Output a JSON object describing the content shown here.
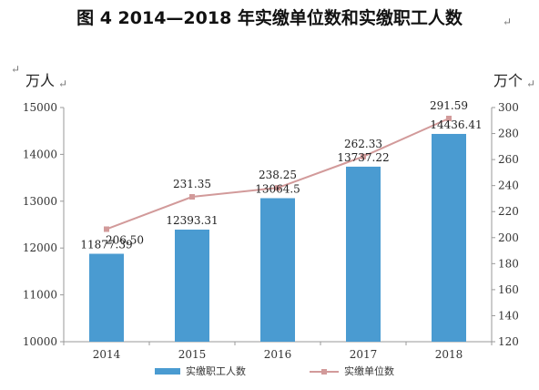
{
  "title": "图 4   2014—2018 年实缴单位数和实缴职工人数",
  "title_mark": "↵",
  "left_unit": "万人",
  "left_unit_mark": "↵",
  "right_unit": "万个",
  "right_unit_mark": "↵",
  "corner_mark": "↵",
  "colors": {
    "bar": "#4a9bd1",
    "line": "#d29a9a",
    "marker": "#d29a9a"
  },
  "chart_data": {
    "type": "bar+line",
    "categories": [
      "2014",
      "2015",
      "2016",
      "2017",
      "2018"
    ],
    "series": [
      {
        "name": "实缴职工人数",
        "type": "bar",
        "axis": "left",
        "values": [
          11877.39,
          12393.31,
          13064.5,
          13737.22,
          14436.41
        ],
        "labels": [
          "11877.39",
          "12393.31",
          "13064.5",
          "13737.22",
          "14436.41"
        ]
      },
      {
        "name": "实缴单位数",
        "type": "line",
        "axis": "right",
        "values": [
          206.5,
          231.35,
          238.25,
          262.33,
          291.59
        ],
        "labels": [
          "206.50",
          "231.35",
          "238.25",
          "262.33",
          "291.59"
        ]
      }
    ],
    "y_left": {
      "min": 10000,
      "max": 15000,
      "ticks": [
        "10000",
        "11000",
        "12000",
        "13000",
        "14000",
        "15000"
      ]
    },
    "y_right": {
      "min": 120,
      "max": 300,
      "ticks": [
        "120",
        "140",
        "160",
        "180",
        "200",
        "220",
        "240",
        "260",
        "280",
        "300"
      ]
    },
    "grid": false,
    "legend_position": "bottom"
  }
}
